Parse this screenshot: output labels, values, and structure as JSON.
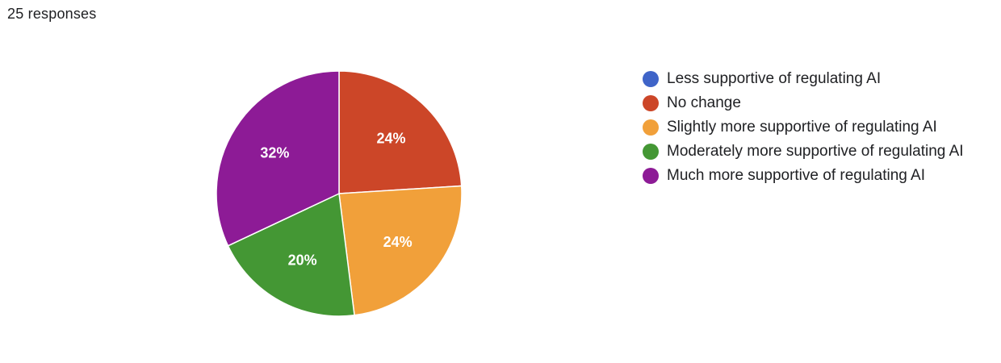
{
  "header": {
    "responses_text": "25 responses"
  },
  "chart_data": {
    "type": "pie",
    "total_responses": 25,
    "start_angle_deg": -90,
    "slices": [
      {
        "name": "Less supportive of regulating AI",
        "value": 0,
        "percent": 0,
        "label": "",
        "color": "#3f64c8"
      },
      {
        "name": "No change",
        "value": 6,
        "percent": 24,
        "label": "24%",
        "color": "#cc4628"
      },
      {
        "name": "Slightly more supportive of regulating AI",
        "value": 6,
        "percent": 24,
        "label": "24%",
        "color": "#f1a03a"
      },
      {
        "name": "Moderately more supportive of regulating AI",
        "value": 5,
        "percent": 20,
        "label": "20%",
        "color": "#449734"
      },
      {
        "name": "Much more supportive of regulating AI",
        "value": 8,
        "percent": 32,
        "label": "32%",
        "color": "#8d1b96"
      }
    ],
    "legend_position": "right"
  }
}
